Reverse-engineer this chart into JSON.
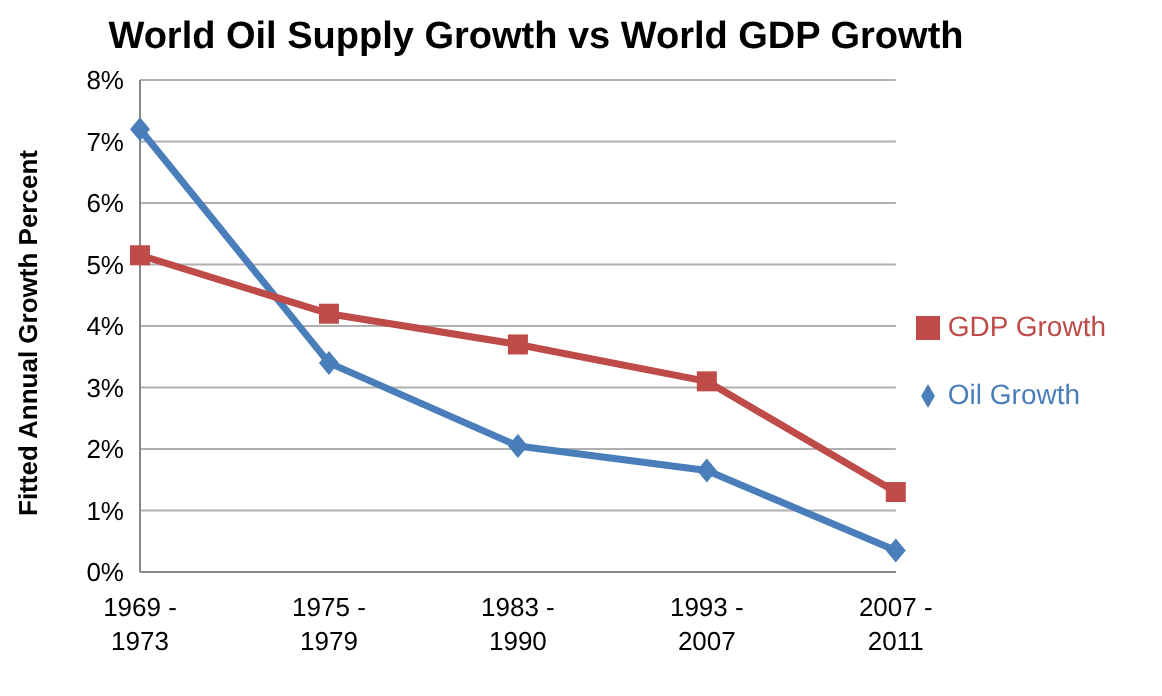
{
  "chart_data": {
    "type": "line",
    "title": "World Oil Supply Growth vs World GDP Growth",
    "ylabel": "Fitted Annual Growth Percent",
    "categories": [
      "1969 - 1973",
      "1975 - 1979",
      "1983 - 1990",
      "1993 - 2007",
      "2007 - 2011"
    ],
    "series": [
      {
        "name": "Oil Growth",
        "color": "#4a7ebb",
        "marker": "diamond",
        "values": [
          7.2,
          3.4,
          2.05,
          1.65,
          0.35
        ]
      },
      {
        "name": "GDP Growth",
        "color": "#be4b48",
        "marker": "square",
        "values": [
          5.15,
          4.2,
          3.7,
          3.1,
          1.3
        ]
      }
    ],
    "ylim": [
      0,
      8
    ],
    "yticks": [
      {
        "value": 0,
        "label": "0%"
      },
      {
        "value": 1,
        "label": "1%"
      },
      {
        "value": 2,
        "label": "2%"
      },
      {
        "value": 3,
        "label": "3%"
      },
      {
        "value": 4,
        "label": "4%"
      },
      {
        "value": 5,
        "label": "5%"
      },
      {
        "value": 6,
        "label": "6%"
      },
      {
        "value": 7,
        "label": "7%"
      },
      {
        "value": 8,
        "label": "8%"
      }
    ],
    "grid": "y",
    "legend": "right",
    "line_style": "solid"
  }
}
